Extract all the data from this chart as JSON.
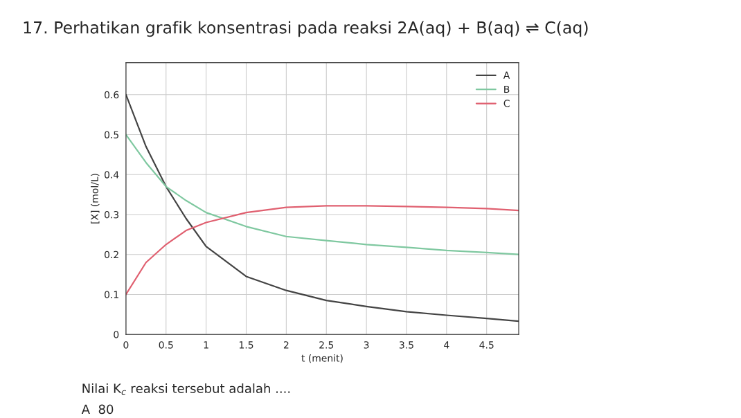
{
  "chart_data": {
    "type": "line",
    "title": "17. Perhatikan grafik konsentrasi pada reaksi 2A(aq) + B(aq) ⇌ C(aq)",
    "xlabel": "t (menit)",
    "ylabel": "[X] (mol/L)",
    "x": [
      0,
      0.25,
      0.5,
      0.75,
      1,
      1.5,
      2,
      2.5,
      3,
      3.5,
      4,
      4.5,
      4.9
    ],
    "series": [
      {
        "name": "A",
        "color": "#444444",
        "values": [
          0.6,
          0.47,
          0.37,
          0.29,
          0.22,
          0.145,
          0.11,
          0.085,
          0.07,
          0.057,
          0.048,
          0.04,
          0.033
        ]
      },
      {
        "name": "B",
        "color": "#7fc8a0",
        "values": [
          0.5,
          0.43,
          0.37,
          0.335,
          0.305,
          0.27,
          0.245,
          0.235,
          0.225,
          0.218,
          0.21,
          0.205,
          0.2
        ]
      },
      {
        "name": "C",
        "color": "#e06070",
        "values": [
          0.1,
          0.18,
          0.225,
          0.26,
          0.28,
          0.305,
          0.318,
          0.322,
          0.322,
          0.32,
          0.318,
          0.315,
          0.31
        ]
      }
    ],
    "xlim": [
      0,
      4.9
    ],
    "ylim": [
      0,
      0.68
    ],
    "xticks": [
      0,
      0.5,
      1,
      1.5,
      2,
      2.5,
      3,
      3.5,
      4,
      4.5
    ],
    "yticks": [
      0,
      0.1,
      0.2,
      0.3,
      0.4,
      0.5,
      0.6
    ],
    "grid": true,
    "legend": "top right",
    "marker": "none",
    "line_style": "solid",
    "annotations": [
      "Nilai K$_{c}$ reaksi tersebut adalah ....",
      "A  80"
    ]
  }
}
